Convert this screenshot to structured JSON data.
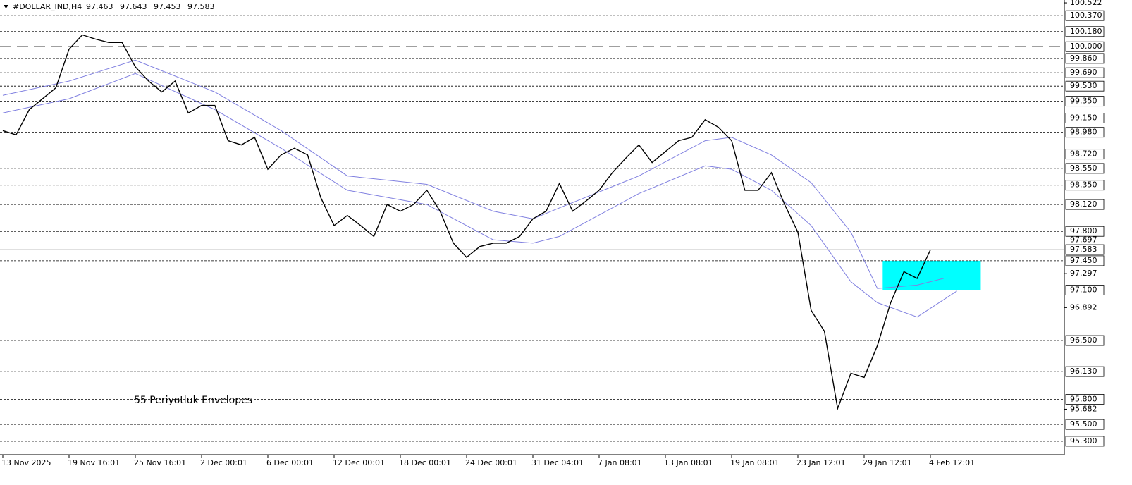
{
  "chart_data": {
    "type": "line",
    "symbol": "#DOLLAR_IND,H4",
    "ohlc": [
      "97.463",
      "97.643",
      "97.453",
      "97.583"
    ],
    "annotation": "55 Periyotluk Envelopes",
    "annotation_color": "#5050a8",
    "xlim": [
      0,
      80
    ],
    "xticks": [
      {
        "value": 0,
        "label": "13 Nov 2025"
      },
      {
        "value": 5,
        "label": "19 Nov 16:01"
      },
      {
        "value": 10,
        "label": "25 Nov 16:01"
      },
      {
        "value": 15,
        "label": "2 Dec 00:01"
      },
      {
        "value": 20,
        "label": "6 Dec 00:01"
      },
      {
        "value": 25,
        "label": "12 Dec 00:01"
      },
      {
        "value": 30,
        "label": "18 Dec 00:01"
      },
      {
        "value": 35,
        "label": "24 Dec 00:01"
      },
      {
        "value": 40,
        "label": "31 Dec 04:01"
      },
      {
        "value": 45,
        "label": "7 Jan 08:01"
      },
      {
        "value": 50,
        "label": "13 Jan 08:01"
      },
      {
        "value": 55,
        "label": "19 Jan 08:01"
      },
      {
        "value": 60,
        "label": "23 Jan 12:01"
      },
      {
        "value": 65,
        "label": "29 Jan 12:01"
      },
      {
        "value": 70,
        "label": "4 Feb 12:01"
      }
    ],
    "ylim": [
      95.14,
      100.556
    ],
    "yticks": [
      100.522,
      97.697,
      97.297,
      96.892,
      95.682
    ],
    "levels": [
      {
        "value": 100.37,
        "label": "100.370"
      },
      {
        "value": 100.18,
        "label": "100.180"
      },
      {
        "value": 100,
        "label": "100.000"
      },
      {
        "value": 99.86,
        "label": "99.860"
      },
      {
        "value": 99.69,
        "label": "99.690"
      },
      {
        "value": 99.53,
        "label": "99.530"
      },
      {
        "value": 99.35,
        "label": "99.350"
      },
      {
        "value": 99.15,
        "label": "99.150"
      },
      {
        "value": 98.98,
        "label": "98.980"
      },
      {
        "value": 98.72,
        "label": "98.720"
      },
      {
        "value": 98.55,
        "label": "98.550"
      },
      {
        "value": 98.35,
        "label": "98.350"
      },
      {
        "value": 98.12,
        "label": "98.120"
      },
      {
        "value": 97.8,
        "label": "97.800"
      },
      {
        "value": 97.45,
        "label": "97.450"
      },
      {
        "value": 97.1,
        "label": "97.100"
      },
      {
        "value": 96.5,
        "label": "96.500"
      },
      {
        "value": 96.13,
        "label": "96.130"
      },
      {
        "value": 95.8,
        "label": "95.800"
      },
      {
        "value": 95.5,
        "label": "95.500"
      },
      {
        "value": 95.3,
        "label": "95.300"
      }
    ],
    "key_level": 100,
    "last_price": 97.583,
    "zone": {
      "x": [
        66.4,
        73.8
      ],
      "y": [
        97.1,
        97.45
      ],
      "color": "#00ffff"
    },
    "series": [
      {
        "color": "#000000",
        "x": [
          0,
          1,
          2,
          3,
          4,
          5,
          6,
          7,
          8,
          9,
          10,
          11,
          12,
          13,
          14,
          15,
          16,
          17,
          18,
          19,
          20,
          21,
          22,
          23,
          24,
          25,
          26,
          27,
          28,
          29,
          30,
          31,
          32,
          33,
          34,
          35,
          36,
          37,
          38,
          39,
          40,
          41,
          42,
          43,
          44,
          45,
          46,
          47,
          48,
          49,
          50,
          51,
          52,
          53,
          54,
          55,
          56,
          57,
          58,
          59,
          60,
          61,
          62,
          63,
          64,
          65,
          66,
          67,
          68,
          69,
          70
        ],
        "values": [
          99.0,
          98.95,
          99.25,
          99.38,
          99.51,
          99.97,
          100.14,
          100.09,
          100.05,
          100.05,
          99.76,
          99.59,
          99.46,
          99.59,
          99.21,
          99.3,
          99.3,
          98.88,
          98.83,
          98.92,
          98.54,
          98.71,
          98.79,
          98.71,
          98.2,
          97.87,
          97.99,
          97.87,
          97.74,
          98.12,
          98.04,
          98.12,
          98.29,
          98.04,
          97.66,
          97.49,
          97.62,
          97.66,
          97.66,
          97.74,
          97.95,
          98.04,
          98.37,
          98.04,
          98.16,
          98.29,
          98.5,
          98.67,
          98.83,
          98.62,
          98.75,
          98.88,
          98.92,
          99.13,
          99.04,
          98.88,
          98.29,
          98.29,
          98.5,
          98.12,
          97.79,
          96.86,
          96.61,
          95.69,
          96.11,
          96.06,
          96.44,
          96.95,
          97.32,
          97.24,
          97.58
        ]
      },
      {
        "color": "#8080e0",
        "x": [
          0,
          5,
          10,
          16,
          21,
          26,
          32,
          37,
          40,
          42,
          48,
          53,
          55,
          58,
          61,
          64,
          66,
          69,
          71
        ],
        "values": [
          99.42,
          99.59,
          99.84,
          99.46,
          99.0,
          98.46,
          98.36,
          98.04,
          97.95,
          98.08,
          98.46,
          98.88,
          98.92,
          98.71,
          98.38,
          97.79,
          97.12,
          97.16,
          97.24
        ]
      },
      {
        "color": "#8080e0",
        "x": [
          0,
          5,
          10,
          16,
          21,
          26,
          32,
          37,
          40,
          42,
          48,
          53,
          55,
          58,
          61,
          64,
          66,
          69,
          72
        ],
        "values": [
          99.21,
          99.38,
          99.68,
          99.25,
          98.79,
          98.29,
          98.12,
          97.7,
          97.66,
          97.74,
          98.25,
          98.58,
          98.54,
          98.29,
          97.87,
          97.2,
          96.95,
          96.78,
          97.09
        ]
      }
    ]
  }
}
